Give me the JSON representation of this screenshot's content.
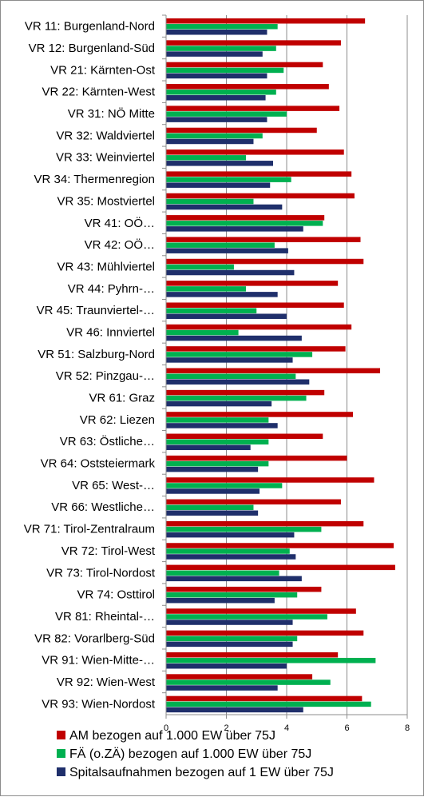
{
  "chart_data": {
    "type": "bar",
    "orientation": "horizontal",
    "categories": [
      "VR 11: Burgenland-Nord",
      "VR 12: Burgenland-Süd",
      "VR 21: Kärnten-Ost",
      "VR 22: Kärnten-West",
      "VR 31: NÖ Mitte",
      "VR 32: Waldviertel",
      "VR 33: Weinviertel",
      "VR 34: Thermenregion",
      "VR 35: Mostviertel",
      "VR 41: OÖ…",
      "VR 42: OÖ…",
      "VR 43: Mühlviertel",
      "VR 44: Pyhrn-…",
      "VR 45: Traunviertel-…",
      "VR 46: Innviertel",
      "VR 51: Salzburg-Nord",
      "VR 52: Pinzgau-…",
      "VR 61: Graz",
      "VR 62: Liezen",
      "VR 63: Östliche…",
      "VR 64: Oststeiermark",
      "VR 65: West-…",
      "VR 66: Westliche…",
      "VR 71: Tirol-Zentralraum",
      "VR 72: Tirol-West",
      "VR 73: Tirol-Nordost",
      "VR 74: Osttirol",
      "VR 81: Rheintal-…",
      "VR 82: Vorarlberg-Süd",
      "VR 91: Wien-Mitte-…",
      "VR 92: Wien-West",
      "VR 93: Wien-Nordost"
    ],
    "series": [
      {
        "name": "AM  bezogen auf 1.000 EW über 75J",
        "color": "#c00000",
        "values": [
          6.6,
          5.8,
          5.2,
          5.4,
          5.75,
          5.0,
          5.9,
          6.15,
          6.25,
          5.25,
          6.45,
          6.55,
          5.7,
          5.9,
          6.15,
          5.95,
          7.1,
          5.25,
          6.2,
          5.2,
          6.0,
          6.9,
          5.8,
          6.55,
          7.55,
          7.6,
          5.15,
          6.3,
          6.55,
          5.7,
          4.85,
          6.5
        ]
      },
      {
        "name": "FÄ (o.ZÄ)  bezogen auf 1.000 EW über 75J",
        "color": "#00b050",
        "values": [
          3.7,
          3.65,
          3.9,
          3.65,
          4.0,
          3.2,
          2.65,
          4.15,
          2.9,
          5.2,
          3.6,
          2.25,
          2.65,
          3.0,
          2.4,
          4.85,
          4.3,
          4.65,
          3.4,
          3.4,
          3.4,
          3.85,
          2.9,
          5.15,
          4.1,
          3.75,
          4.35,
          5.35,
          4.35,
          6.95,
          5.45,
          6.8
        ]
      },
      {
        "name": "Spitalsaufnahmen bezogen auf 1 EW über 75J",
        "color": "#1f2f6b",
        "values": [
          3.35,
          3.2,
          3.35,
          3.3,
          3.35,
          2.9,
          3.55,
          3.45,
          3.85,
          4.55,
          4.05,
          4.25,
          3.7,
          4.0,
          4.5,
          4.2,
          4.75,
          3.5,
          3.7,
          2.8,
          3.05,
          3.1,
          3.05,
          4.25,
          4.3,
          4.5,
          3.6,
          4.2,
          4.2,
          4.0,
          3.7,
          4.55
        ]
      }
    ],
    "xlim": [
      0,
      8
    ],
    "xticks": [
      0,
      2,
      4,
      6,
      8
    ],
    "grid": true,
    "legend_position": "bottom"
  }
}
